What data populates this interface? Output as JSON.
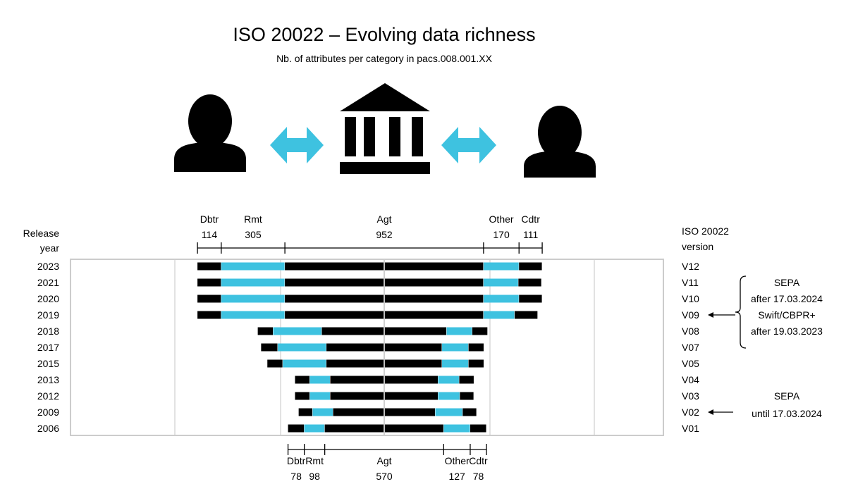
{
  "title": "ISO 20022 – Evolving data richness",
  "subtitle": "Nb. of attributes per category in pacs.008.001.XX",
  "header_left": [
    "Release",
    "year"
  ],
  "header_right": [
    "ISO 20022",
    "version"
  ],
  "colors": {
    "dark": "#000000",
    "accent": "#3ec2e0",
    "frame": "#cccccc",
    "grid": "#d9d9d9"
  },
  "icons": [
    "debtor-person-icon",
    "bidirectional-arrow-icon",
    "bank-building-icon",
    "bidirectional-arrow-icon",
    "creditor-person-icon"
  ],
  "chart_data": {
    "type": "bar",
    "layout": "stacked-centered-horizontal",
    "categories": [
      "Dbtr",
      "Rmt",
      "Agt",
      "Other",
      "Cdtr"
    ],
    "top_scale": {
      "Dbtr": 114,
      "Rmt": 305,
      "Agt": 952,
      "Other": 170,
      "Cdtr": 111
    },
    "bottom_scale": {
      "Dbtr": 78,
      "Rmt": 98,
      "Agt": 570,
      "Other": 127,
      "Cdtr": 78
    },
    "rows": [
      {
        "year": "2023",
        "version": "V12",
        "values": [
          114,
          305,
          952,
          170,
          111
        ]
      },
      {
        "year": "2021",
        "version": "V11",
        "values": [
          114,
          305,
          952,
          167,
          111
        ]
      },
      {
        "year": "2020",
        "version": "V10",
        "values": [
          114,
          305,
          952,
          170,
          111
        ]
      },
      {
        "year": "2019",
        "version": "V09",
        "values": [
          114,
          305,
          952,
          149,
          111
        ]
      },
      {
        "year": "2018",
        "version": "V08",
        "values": [
          74,
          233,
          598,
          123,
          74
        ]
      },
      {
        "year": "2017",
        "version": "V07",
        "values": [
          80,
          233,
          554,
          127,
          74
        ]
      },
      {
        "year": "2015",
        "version": "V05",
        "values": [
          74,
          209,
          554,
          127,
          74
        ]
      },
      {
        "year": "2013",
        "version": "V04",
        "values": [
          71,
          98,
          517,
          101,
          71
        ]
      },
      {
        "year": "2012",
        "version": "V03",
        "values": [
          71,
          98,
          517,
          104,
          67
        ]
      },
      {
        "year": "2009",
        "version": "V02",
        "values": [
          67,
          98,
          490,
          131,
          67
        ]
      },
      {
        "year": "2006",
        "version": "V01",
        "values": [
          78,
          98,
          570,
          127,
          78
        ]
      }
    ],
    "annotations": [
      {
        "lines": [
          "SEPA",
          "after 17.03.2024",
          "Swift/CBPR+",
          "after 19.03.2023"
        ],
        "target": "V09",
        "bracket": [
          "V12",
          "V07"
        ]
      },
      {
        "lines": [
          "SEPA",
          "until 17.03.2024"
        ],
        "target": "V02"
      }
    ]
  }
}
